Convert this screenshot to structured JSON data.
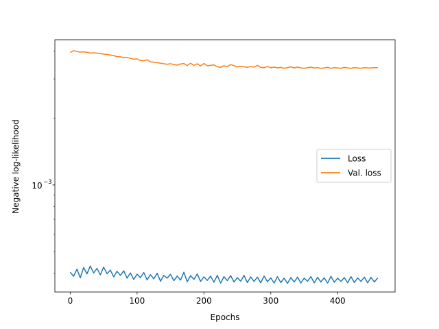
{
  "chart_data": {
    "type": "line",
    "title": "",
    "xlabel": "Epochs",
    "ylabel": "Negative log-likelihood",
    "xlim": [
      -23,
      486
    ],
    "ylim": [
      0.00033,
      0.0045
    ],
    "yscale": "log",
    "grid": false,
    "legend_position": "center-right",
    "x_ticks": [
      {
        "value": 0,
        "label": "0"
      },
      {
        "value": 100,
        "label": "100"
      },
      {
        "value": 200,
        "label": "200"
      },
      {
        "value": 300,
        "label": "300"
      },
      {
        "value": 400,
        "label": "400"
      }
    ],
    "y_ticks": [
      {
        "value": 0.001,
        "base": "10",
        "exp": "−3"
      }
    ],
    "series": [
      {
        "name": "Loss",
        "color": "#1f77b4",
        "x": [
          0,
          5,
          10,
          15,
          20,
          25,
          30,
          35,
          40,
          45,
          50,
          55,
          60,
          65,
          70,
          75,
          80,
          85,
          90,
          95,
          100,
          105,
          110,
          115,
          120,
          125,
          130,
          135,
          140,
          145,
          150,
          155,
          160,
          165,
          170,
          175,
          180,
          185,
          190,
          195,
          200,
          205,
          210,
          215,
          220,
          225,
          230,
          235,
          240,
          245,
          250,
          255,
          260,
          265,
          270,
          275,
          280,
          285,
          290,
          295,
          300,
          305,
          310,
          315,
          320,
          325,
          330,
          335,
          340,
          345,
          350,
          355,
          360,
          365,
          370,
          375,
          380,
          385,
          390,
          395,
          400,
          405,
          410,
          415,
          420,
          425,
          430,
          435,
          440,
          445,
          450,
          455,
          460
        ],
        "values": [
          0.000405,
          0.000388,
          0.000418,
          0.000382,
          0.000425,
          0.000398,
          0.000432,
          0.000402,
          0.000421,
          0.000394,
          0.000427,
          0.000399,
          0.000414,
          0.000386,
          0.000409,
          0.000392,
          0.000411,
          0.000381,
          0.000402,
          0.000376,
          0.000397,
          0.000383,
          0.000404,
          0.000374,
          0.000395,
          0.000378,
          0.000401,
          0.000369,
          0.000392,
          0.000381,
          0.000396,
          0.000371,
          0.000389,
          0.000373,
          0.000405,
          0.000367,
          0.000391,
          0.000376,
          0.000398,
          0.000368,
          0.000386,
          0.000372,
          0.000389,
          0.000365,
          0.000392,
          0.000362,
          0.000387,
          0.000371,
          0.000391,
          0.000366,
          0.000383,
          0.000369,
          0.000392,
          0.000364,
          0.000386,
          0.000368,
          0.000385,
          0.000363,
          0.000389,
          0.000367,
          0.000382,
          0.000362,
          0.000387,
          0.000364,
          0.000381,
          0.000361,
          0.000383,
          0.000366,
          0.000385,
          0.000362,
          0.000381,
          0.000369,
          0.000387,
          0.000363,
          0.000384,
          0.000366,
          0.000382,
          0.000362,
          0.000388,
          0.000365,
          0.000381,
          0.000368,
          0.000383,
          0.000363,
          0.000387,
          0.000364,
          0.000382,
          0.000368,
          0.000385,
          0.000363,
          0.000384,
          0.000366,
          0.000382
        ]
      },
      {
        "name": "Val. loss",
        "color": "#ff7f0e",
        "x": [
          0,
          5,
          10,
          15,
          20,
          25,
          30,
          35,
          40,
          45,
          50,
          55,
          60,
          65,
          70,
          75,
          80,
          85,
          90,
          95,
          100,
          105,
          110,
          115,
          120,
          125,
          130,
          135,
          140,
          145,
          150,
          155,
          160,
          165,
          170,
          175,
          180,
          185,
          190,
          195,
          200,
          205,
          210,
          215,
          220,
          225,
          230,
          235,
          240,
          245,
          250,
          255,
          260,
          265,
          270,
          275,
          280,
          285,
          290,
          295,
          300,
          305,
          310,
          315,
          320,
          325,
          330,
          335,
          340,
          345,
          350,
          355,
          360,
          365,
          370,
          375,
          380,
          385,
          390,
          395,
          400,
          405,
          410,
          415,
          420,
          425,
          430,
          435,
          440,
          445,
          450,
          455,
          460
        ],
        "values": [
          0.00395,
          0.00402,
          0.00398,
          0.00396,
          0.00397,
          0.00395,
          0.00392,
          0.00393,
          0.00392,
          0.0039,
          0.00388,
          0.00386,
          0.00384,
          0.00382,
          0.00378,
          0.00377,
          0.00374,
          0.00375,
          0.00371,
          0.00368,
          0.00369,
          0.00363,
          0.00362,
          0.00366,
          0.00358,
          0.00357,
          0.00355,
          0.00353,
          0.00351,
          0.00349,
          0.00351,
          0.00348,
          0.00346,
          0.0035,
          0.00352,
          0.00344,
          0.00353,
          0.00345,
          0.00351,
          0.00343,
          0.00352,
          0.00343,
          0.00345,
          0.00347,
          0.0034,
          0.00338,
          0.00344,
          0.00341,
          0.00348,
          0.00344,
          0.0034,
          0.00342,
          0.0034,
          0.00338,
          0.00341,
          0.00339,
          0.00345,
          0.00338,
          0.00337,
          0.00341,
          0.00337,
          0.00339,
          0.00336,
          0.00338,
          0.00335,
          0.00337,
          0.0034,
          0.00336,
          0.00339,
          0.00336,
          0.00335,
          0.00337,
          0.00339,
          0.00336,
          0.00337,
          0.00335,
          0.00336,
          0.00338,
          0.00335,
          0.00337,
          0.00336,
          0.00335,
          0.00338,
          0.00336,
          0.00335,
          0.00337,
          0.00336,
          0.00335,
          0.00337,
          0.00336,
          0.00336,
          0.00337,
          0.00337
        ]
      }
    ]
  }
}
